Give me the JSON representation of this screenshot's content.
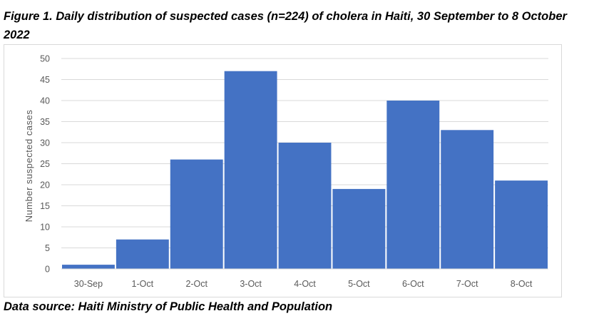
{
  "figure": {
    "title": "Figure 1. Daily distribution of suspected cases (n=224) of cholera in Haiti, 30 September to 8 October 2022",
    "source": "Data source: Haiti Ministry of Public Health and Population"
  },
  "chart_data": {
    "type": "bar",
    "title": "",
    "xlabel": "",
    "ylabel": "Number suspected cases",
    "categories": [
      "30-Sep",
      "1-Oct",
      "2-Oct",
      "3-Oct",
      "4-Oct",
      "5-Oct",
      "6-Oct",
      "7-Oct",
      "8-Oct"
    ],
    "values": [
      1,
      7,
      26,
      47,
      30,
      19,
      40,
      33,
      21
    ],
    "ylim": [
      0,
      50
    ],
    "yticks": [
      0,
      5,
      10,
      15,
      20,
      25,
      30,
      35,
      40,
      45,
      50
    ],
    "grid": true,
    "legend": "none",
    "bar_color": "#4472C4",
    "gridline_color": "#d9d9d9"
  }
}
